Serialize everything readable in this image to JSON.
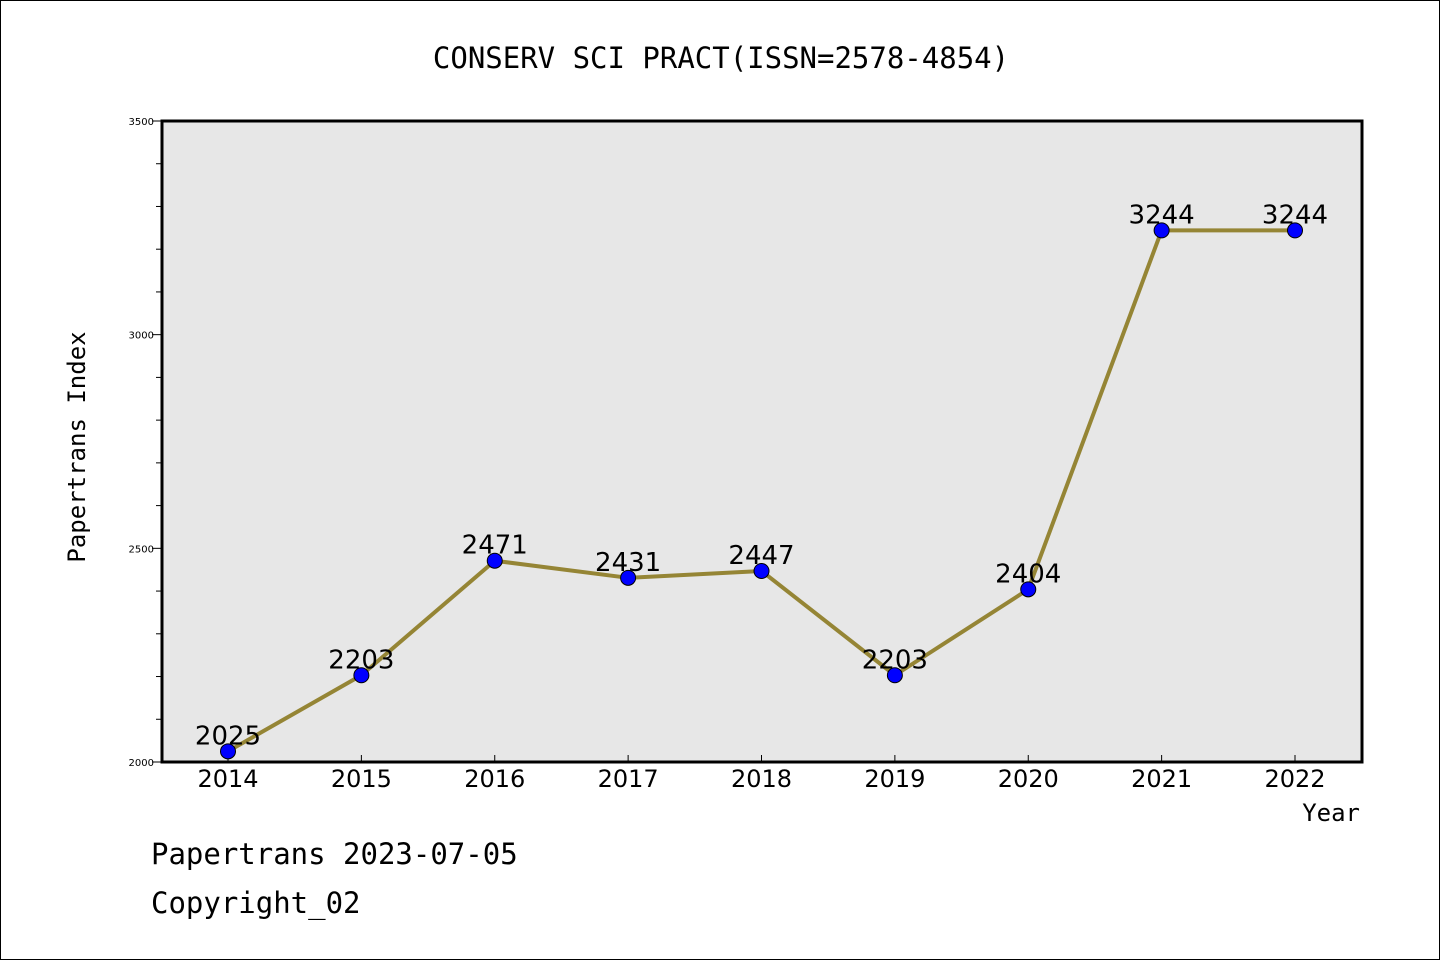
{
  "chart_data": {
    "type": "line",
    "title": "CONSERV SCI PRACT(ISSN=2578-4854)",
    "xlabel": "Year",
    "ylabel": "Papertrans Index",
    "categories": [
      "2014",
      "2015",
      "2016",
      "2017",
      "2018",
      "2019",
      "2020",
      "2021",
      "2022"
    ],
    "series": [
      {
        "values": [
          2025,
          2203,
          2471,
          2431,
          2447,
          2203,
          2404,
          3244,
          3244
        ]
      }
    ],
    "ylim": [
      2000,
      3500
    ],
    "yticks": [
      "2000",
      "2500",
      "3000",
      "3500"
    ],
    "grid": false,
    "data_labels": true,
    "colors": {
      "line": "#958535",
      "marker": "#0000ff",
      "plot_background": "#e7e7e7",
      "frame": "#000000"
    }
  },
  "footer": {
    "date_line": "Papertrans 2023-07-05",
    "copyright": "Copyright_02"
  }
}
